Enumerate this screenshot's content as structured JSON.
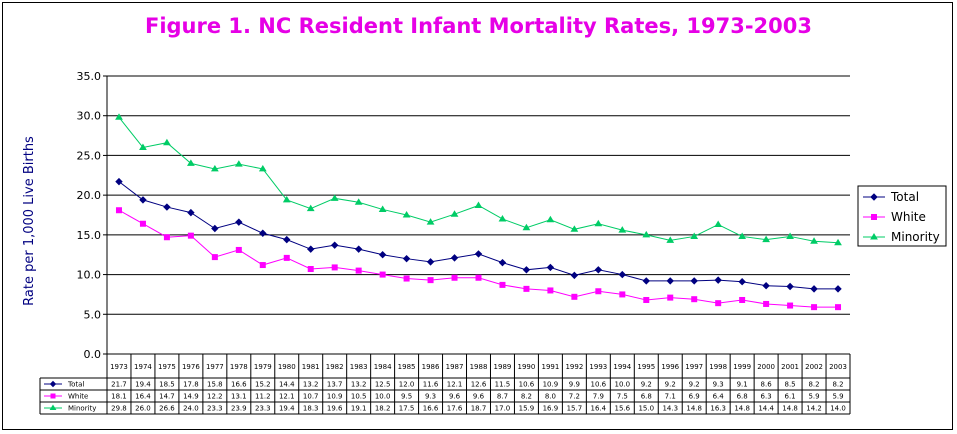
{
  "chart_data": {
    "type": "line",
    "title": "Figure 1. NC Resident Infant Mortality Rates, 1973-2003",
    "ylabel": "Rate per 1,000 Live Births",
    "xlabel": "",
    "ylim": [
      0,
      35
    ],
    "yticks": [
      "0.0",
      "5.0",
      "10.0",
      "15.0",
      "20.0",
      "25.0",
      "30.0",
      "35.0"
    ],
    "grid": true,
    "legend_position": "right",
    "categories": [
      "1973",
      "1974",
      "1975",
      "1976",
      "1977",
      "1978",
      "1979",
      "1980",
      "1981",
      "1982",
      "1983",
      "1984",
      "1985",
      "1986",
      "1987",
      "1988",
      "1989",
      "1990",
      "1991",
      "1992",
      "1993",
      "1994",
      "1995",
      "1996",
      "1997",
      "1998",
      "1999",
      "2000",
      "2001",
      "2002",
      "2003"
    ],
    "series": [
      {
        "name": "Total",
        "color": "#000080",
        "marker": "diamond",
        "values": [
          21.7,
          19.4,
          18.5,
          17.8,
          15.8,
          16.6,
          15.2,
          14.4,
          13.2,
          13.7,
          13.2,
          12.5,
          12.0,
          11.6,
          12.1,
          12.6,
          11.5,
          10.6,
          10.9,
          9.9,
          10.6,
          10.0,
          9.2,
          9.2,
          9.2,
          9.3,
          9.1,
          8.6,
          8.5,
          8.2,
          8.2
        ],
        "labels": [
          "21.7",
          "19.4",
          "18.5",
          "17.8",
          "15.8",
          "16.6",
          "15.2",
          "14.4",
          "13.2",
          "13.7",
          "13.2",
          "12.5",
          "12.0",
          "11.6",
          "12.1",
          "12.6",
          "11.5",
          "10.6",
          "10.9",
          "9.9",
          "10.6",
          "10.0",
          "9.2",
          "9.2",
          "9.2",
          "9.3",
          "9.1",
          "8.6",
          "8.5",
          "8.2",
          "8.2"
        ]
      },
      {
        "name": "White",
        "color": "#ff00ff",
        "marker": "square",
        "values": [
          18.1,
          16.4,
          14.7,
          14.9,
          12.2,
          13.1,
          11.2,
          12.1,
          10.7,
          10.9,
          10.5,
          10.0,
          9.5,
          9.3,
          9.6,
          9.6,
          8.7,
          8.2,
          8.0,
          7.2,
          7.9,
          7.5,
          6.8,
          7.1,
          6.9,
          6.4,
          6.8,
          6.3,
          6.1,
          5.9,
          5.9
        ],
        "labels": [
          "18.1",
          "16.4",
          "14.7",
          "14.9",
          "12.2",
          "13.1",
          "11.2",
          "12.1",
          "10.7",
          "10.9",
          "10.5",
          "10.0",
          "9.5",
          "9.3",
          "9.6",
          "9.6",
          "8.7",
          "8.2",
          "8.0",
          "7.2",
          "7.9",
          "7.5",
          "6.8",
          "7.1",
          "6.9",
          "6.4",
          "6.8",
          "6.3",
          "6.1",
          "5.9",
          "5.9"
        ]
      },
      {
        "name": "Minority",
        "color": "#00cc66",
        "marker": "triangle",
        "values": [
          29.8,
          26.0,
          26.6,
          24.0,
          23.3,
          23.9,
          23.3,
          19.4,
          18.3,
          19.6,
          19.1,
          18.2,
          17.5,
          16.6,
          17.6,
          18.7,
          17.0,
          15.9,
          16.9,
          15.7,
          16.4,
          15.6,
          15.0,
          14.3,
          14.8,
          16.3,
          14.8,
          14.4,
          14.8,
          14.2,
          14.0
        ],
        "labels": [
          "29.8",
          "26.0",
          "26.6",
          "24.0",
          "23.3",
          "23.9",
          "23.3",
          "19.4",
          "18.3",
          "19.6",
          "19.1",
          "18.2",
          "17.5",
          "16.6",
          "17.6",
          "18.7",
          "17.0",
          "15.9",
          "16.9",
          "15.7",
          "16.4",
          "15.6",
          "15.0",
          "14.3",
          "14.8",
          "16.3",
          "14.8",
          "14.4",
          "14.8",
          "14.2",
          "14.0"
        ]
      }
    ]
  }
}
